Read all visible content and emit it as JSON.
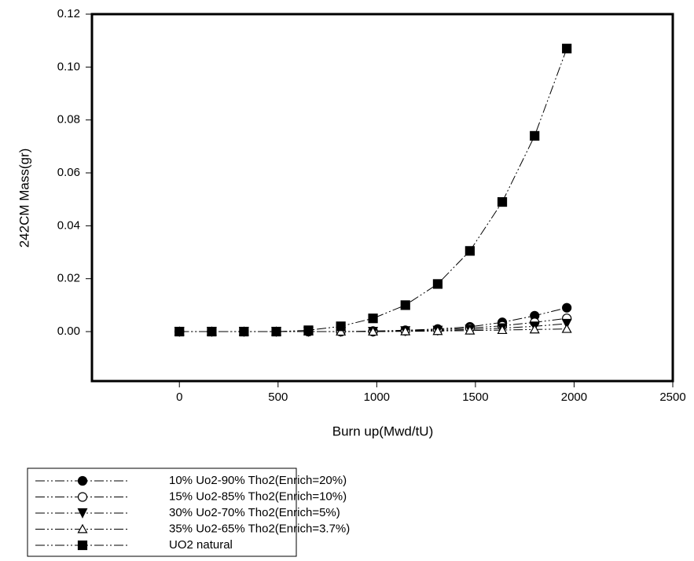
{
  "chart_data": {
    "type": "line",
    "x_label": "Burn up(Mwd/tU)",
    "y_label": "242CM Mass(gr)",
    "x": [
      0,
      164,
      327,
      491,
      654,
      818,
      981,
      1145,
      1309,
      1472,
      1636,
      1800,
      1963
    ],
    "series": [
      {
        "name": "10% Uo2-90% Tho2(Enrich=20%)",
        "color": "#000000",
        "marker": "circle-filled",
        "values": [
          0,
          0,
          0,
          0,
          0,
          0,
          0.0002,
          0.0005,
          0.001,
          0.0018,
          0.0035,
          0.006,
          0.009
        ]
      },
      {
        "name": "15% Uo2-85% Tho2(Enrich=10%)",
        "color": "#000000",
        "marker": "circle-open",
        "values": [
          0,
          0,
          0,
          0,
          0,
          0,
          0,
          0.0003,
          0.0007,
          0.0013,
          0.0022,
          0.0035,
          0.005
        ]
      },
      {
        "name": "30% Uo2-70% Tho2(Enrich=5%)",
        "color": "#000000",
        "marker": "triangle-down-filled",
        "values": [
          0,
          0,
          0,
          0,
          0,
          0,
          0,
          0.0002,
          0.0004,
          0.0008,
          0.0013,
          0.002,
          0.003
        ]
      },
      {
        "name": "35% Uo2-65% Tho2(Enrich=3.7%)",
        "color": "#000000",
        "marker": "triangle-up-open",
        "values": [
          0,
          0,
          0,
          0,
          0,
          0,
          0,
          0.0001,
          0.0002,
          0.0004,
          0.0006,
          0.0008,
          0.001
        ]
      },
      {
        "name": "UO2 natural",
        "color": "#000000",
        "marker": "square-filled",
        "values": [
          0,
          0,
          0,
          0,
          0.0005,
          0.002,
          0.005,
          0.01,
          0.018,
          0.0305,
          0.049,
          0.074,
          0.107
        ]
      }
    ],
    "xlim": [
      -443,
      2500
    ],
    "xticks": [
      0,
      500,
      1000,
      1500,
      2000,
      2500
    ],
    "ylim": [
      -0.0187,
      0.12
    ],
    "yticks": [
      {
        "value": 0,
        "label": "0.00"
      },
      {
        "value": 0.02,
        "label": "0.02"
      },
      {
        "value": 0.04,
        "label": "0.04"
      },
      {
        "value": 0.06,
        "label": "0.06"
      },
      {
        "value": 0.08,
        "label": "0.08"
      },
      {
        "value": 0.1,
        "label": "0.10"
      },
      {
        "value": 0.12,
        "label": "0.12"
      }
    ],
    "grid": false,
    "legend": "bottom-left"
  }
}
